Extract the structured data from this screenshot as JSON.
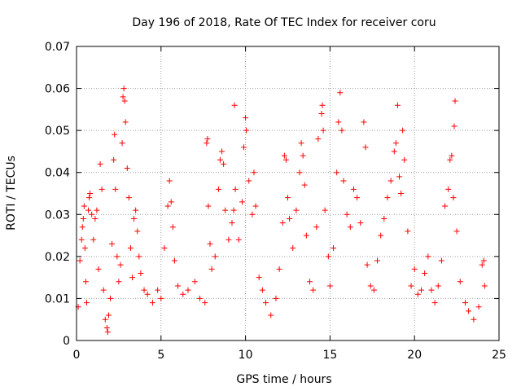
{
  "chart_data": {
    "type": "scatter",
    "title": "Day 196 of 2018, Rate Of TEC Index for receiver coru",
    "xlabel": "GPS time / hours",
    "ylabel": "ROTI / TECUs",
    "xlim": [
      0,
      25
    ],
    "ylim": [
      0,
      0.07
    ],
    "xticks": [
      0,
      5,
      10,
      15,
      20,
      25
    ],
    "yticks": [
      0,
      0.01,
      0.02,
      0.03,
      0.04,
      0.05,
      0.06,
      0.07
    ],
    "xtick_labels": [
      "0",
      "5",
      "10",
      "15",
      "20",
      "25"
    ],
    "ytick_labels": [
      "0",
      "0.01",
      "0.02",
      "0.03",
      "0.04",
      "0.05",
      "0.06",
      "0.07"
    ],
    "grid": true,
    "marker": "plus",
    "color": "#ff0000",
    "series": [
      {
        "values": [
          [
            0.1,
            0.008
          ],
          [
            0.2,
            0.019
          ],
          [
            0.3,
            0.024
          ],
          [
            0.35,
            0.027
          ],
          [
            0.4,
            0.029
          ],
          [
            0.45,
            0.032
          ],
          [
            0.5,
            0.022
          ],
          [
            0.55,
            0.014
          ],
          [
            0.6,
            0.009
          ],
          [
            0.7,
            0.031
          ],
          [
            0.75,
            0.034
          ],
          [
            0.8,
            0.035
          ],
          [
            0.9,
            0.03
          ],
          [
            1.0,
            0.024
          ],
          [
            1.1,
            0.029
          ],
          [
            1.2,
            0.031
          ],
          [
            1.3,
            0.017
          ],
          [
            1.4,
            0.042
          ],
          [
            1.5,
            0.036
          ],
          [
            1.6,
            0.012
          ],
          [
            1.7,
            0.005
          ],
          [
            1.8,
            0.003
          ],
          [
            1.85,
            0.002
          ],
          [
            1.9,
            0.006
          ],
          [
            2.0,
            0.01
          ],
          [
            2.1,
            0.023
          ],
          [
            2.2,
            0.043
          ],
          [
            2.25,
            0.049
          ],
          [
            2.3,
            0.036
          ],
          [
            2.4,
            0.02
          ],
          [
            2.5,
            0.014
          ],
          [
            2.6,
            0.018
          ],
          [
            2.7,
            0.047
          ],
          [
            2.75,
            0.058
          ],
          [
            2.8,
            0.06
          ],
          [
            2.85,
            0.057
          ],
          [
            2.9,
            0.052
          ],
          [
            3.0,
            0.041
          ],
          [
            3.1,
            0.034
          ],
          [
            3.2,
            0.022
          ],
          [
            3.3,
            0.015
          ],
          [
            3.4,
            0.029
          ],
          [
            3.5,
            0.031
          ],
          [
            3.6,
            0.026
          ],
          [
            3.7,
            0.02
          ],
          [
            3.8,
            0.016
          ],
          [
            4.0,
            0.012
          ],
          [
            4.2,
            0.011
          ],
          [
            4.5,
            0.009
          ],
          [
            4.8,
            0.012
          ],
          [
            5.0,
            0.01
          ],
          [
            5.2,
            0.022
          ],
          [
            5.4,
            0.032
          ],
          [
            5.5,
            0.038
          ],
          [
            5.6,
            0.033
          ],
          [
            5.7,
            0.027
          ],
          [
            5.8,
            0.019
          ],
          [
            6.0,
            0.013
          ],
          [
            6.3,
            0.011
          ],
          [
            6.6,
            0.012
          ],
          [
            7.0,
            0.014
          ],
          [
            7.3,
            0.01
          ],
          [
            7.6,
            0.009
          ],
          [
            7.7,
            0.047
          ],
          [
            7.75,
            0.048
          ],
          [
            7.8,
            0.032
          ],
          [
            7.9,
            0.023
          ],
          [
            8.0,
            0.017
          ],
          [
            8.2,
            0.02
          ],
          [
            8.4,
            0.036
          ],
          [
            8.5,
            0.043
          ],
          [
            8.6,
            0.045
          ],
          [
            8.7,
            0.042
          ],
          [
            8.8,
            0.031
          ],
          [
            9.0,
            0.024
          ],
          [
            9.2,
            0.028
          ],
          [
            9.3,
            0.031
          ],
          [
            9.35,
            0.056
          ],
          [
            9.4,
            0.036
          ],
          [
            9.6,
            0.024
          ],
          [
            9.8,
            0.033
          ],
          [
            9.9,
            0.046
          ],
          [
            10.0,
            0.053
          ],
          [
            10.05,
            0.05
          ],
          [
            10.2,
            0.038
          ],
          [
            10.4,
            0.03
          ],
          [
            10.5,
            0.04
          ],
          [
            10.6,
            0.032
          ],
          [
            10.8,
            0.015
          ],
          [
            11.0,
            0.012
          ],
          [
            11.2,
            0.009
          ],
          [
            11.5,
            0.006
          ],
          [
            11.8,
            0.01
          ],
          [
            12.0,
            0.017
          ],
          [
            12.2,
            0.028
          ],
          [
            12.3,
            0.044
          ],
          [
            12.4,
            0.043
          ],
          [
            12.5,
            0.034
          ],
          [
            12.6,
            0.029
          ],
          [
            12.8,
            0.022
          ],
          [
            13.0,
            0.031
          ],
          [
            13.2,
            0.04
          ],
          [
            13.3,
            0.047
          ],
          [
            13.4,
            0.044
          ],
          [
            13.5,
            0.037
          ],
          [
            13.6,
            0.025
          ],
          [
            13.8,
            0.014
          ],
          [
            14.0,
            0.012
          ],
          [
            14.2,
            0.027
          ],
          [
            14.3,
            0.048
          ],
          [
            14.5,
            0.054
          ],
          [
            14.55,
            0.056
          ],
          [
            14.6,
            0.05
          ],
          [
            14.7,
            0.031
          ],
          [
            14.9,
            0.02
          ],
          [
            15.0,
            0.013
          ],
          [
            15.2,
            0.022
          ],
          [
            15.4,
            0.04
          ],
          [
            15.5,
            0.052
          ],
          [
            15.6,
            0.059
          ],
          [
            15.7,
            0.05
          ],
          [
            15.8,
            0.038
          ],
          [
            16.0,
            0.03
          ],
          [
            16.2,
            0.027
          ],
          [
            16.4,
            0.036
          ],
          [
            16.6,
            0.034
          ],
          [
            16.8,
            0.028
          ],
          [
            17.0,
            0.052
          ],
          [
            17.1,
            0.046
          ],
          [
            17.2,
            0.018
          ],
          [
            17.4,
            0.013
          ],
          [
            17.6,
            0.012
          ],
          [
            17.8,
            0.019
          ],
          [
            18.0,
            0.025
          ],
          [
            18.2,
            0.029
          ],
          [
            18.4,
            0.034
          ],
          [
            18.6,
            0.038
          ],
          [
            18.8,
            0.045
          ],
          [
            18.9,
            0.047
          ],
          [
            19.0,
            0.056
          ],
          [
            19.1,
            0.039
          ],
          [
            19.2,
            0.035
          ],
          [
            19.3,
            0.05
          ],
          [
            19.4,
            0.043
          ],
          [
            19.6,
            0.026
          ],
          [
            19.8,
            0.013
          ],
          [
            20.0,
            0.017
          ],
          [
            20.2,
            0.011
          ],
          [
            20.4,
            0.012
          ],
          [
            20.6,
            0.016
          ],
          [
            20.8,
            0.02
          ],
          [
            21.0,
            0.012
          ],
          [
            21.2,
            0.009
          ],
          [
            21.4,
            0.013
          ],
          [
            21.6,
            0.019
          ],
          [
            21.8,
            0.032
          ],
          [
            22.0,
            0.036
          ],
          [
            22.1,
            0.043
          ],
          [
            22.2,
            0.044
          ],
          [
            22.3,
            0.034
          ],
          [
            22.35,
            0.051
          ],
          [
            22.4,
            0.057
          ],
          [
            22.5,
            0.026
          ],
          [
            22.7,
            0.014
          ],
          [
            23.0,
            0.009
          ],
          [
            23.2,
            0.007
          ],
          [
            23.5,
            0.005
          ],
          [
            23.8,
            0.008
          ],
          [
            24.0,
            0.018
          ],
          [
            24.1,
            0.019
          ],
          [
            24.15,
            0.013
          ]
        ]
      }
    ]
  }
}
